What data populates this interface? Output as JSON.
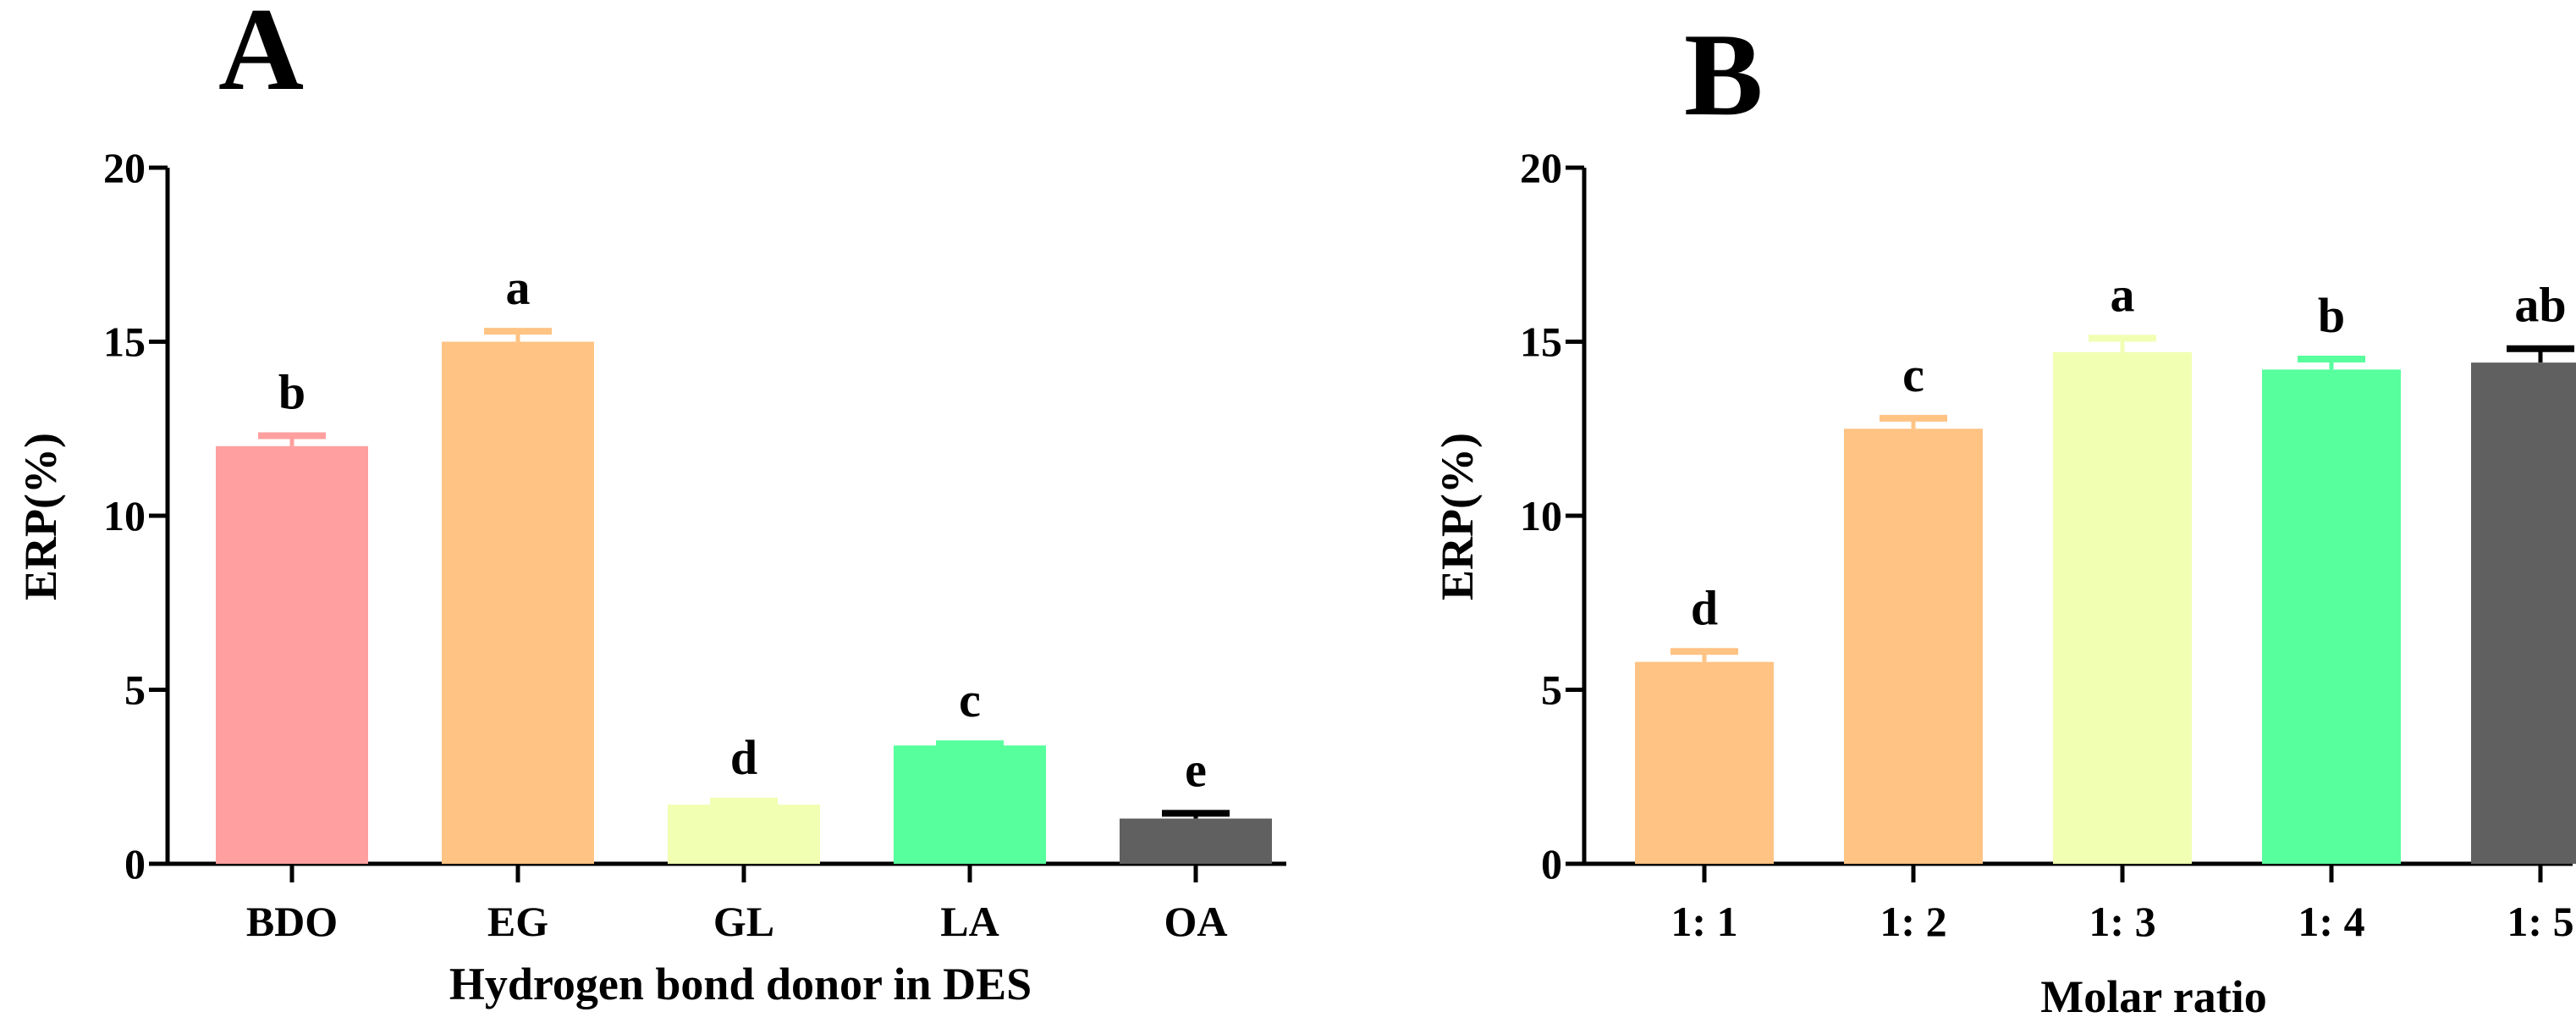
{
  "figure": {
    "panels": [
      "A",
      "B"
    ]
  },
  "chart_data": [
    {
      "panel": "A",
      "type": "bar",
      "title": "",
      "xlabel": "Hydrogen bond donor in DES",
      "ylabel": "ERP(%)",
      "ylim": [
        0,
        20
      ],
      "yticks": [
        0,
        5,
        10,
        15,
        20
      ],
      "categories": [
        "BDO",
        "EG",
        "GL",
        "LA",
        "OA"
      ],
      "values": [
        12.0,
        15.0,
        1.7,
        3.4,
        1.3
      ],
      "errors": [
        0.3,
        0.3,
        0.1,
        0.05,
        0.15
      ],
      "significance": [
        "b",
        "a",
        "d",
        "c",
        "e"
      ],
      "colors": [
        "#ff9f9f",
        "#ffc384",
        "#f0ffb2",
        "#57ff9d",
        "#606060"
      ],
      "error_colors": [
        "#ff9f9f",
        "#ffc384",
        "#f0ffb2",
        "#57ff9d",
        "#000000"
      ],
      "grid": false
    },
    {
      "panel": "B",
      "type": "bar",
      "title": "",
      "xlabel": "Molar ratio",
      "ylabel": "ERP(%)",
      "ylim": [
        0,
        20
      ],
      "yticks": [
        0,
        5,
        10,
        15,
        20
      ],
      "categories": [
        "1: 1",
        "1: 2",
        "1: 3",
        "1: 4",
        "1: 5"
      ],
      "values": [
        5.8,
        12.5,
        14.7,
        14.2,
        14.4
      ],
      "errors": [
        0.3,
        0.3,
        0.4,
        0.3,
        0.4
      ],
      "significance": [
        "d",
        "c",
        "a",
        "b",
        "ab"
      ],
      "colors": [
        "#ffc384",
        "#ffc384",
        "#f0ffb2",
        "#57ff9d",
        "#606060"
      ],
      "error_colors": [
        "#ffc384",
        "#ffc384",
        "#f0ffb2",
        "#57ff9d",
        "#000000"
      ],
      "grid": false
    }
  ]
}
